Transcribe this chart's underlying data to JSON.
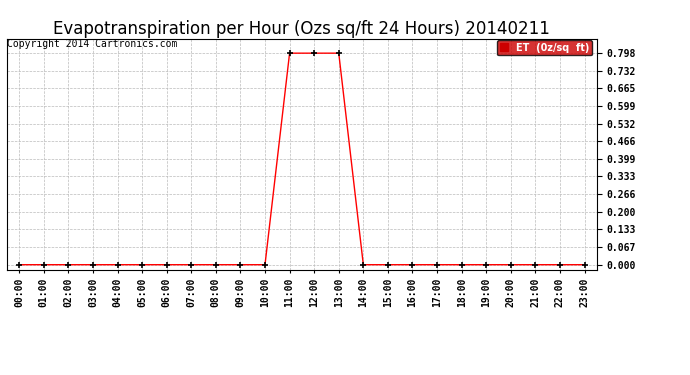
{
  "title": "Evapotranspiration per Hour (Ozs sq/ft 24 Hours) 20140211",
  "copyright": "Copyright 2014 Cartronics.com",
  "legend_label": "ET  (0z/sq  ft)",
  "x_hours": [
    0,
    1,
    2,
    3,
    4,
    5,
    6,
    7,
    8,
    9,
    10,
    11,
    12,
    13,
    14,
    15,
    16,
    17,
    18,
    19,
    20,
    21,
    22,
    23
  ],
  "y_values": [
    0,
    0,
    0,
    0,
    0,
    0,
    0,
    0,
    0,
    0,
    0,
    0.798,
    0.798,
    0.798,
    0,
    0,
    0,
    0,
    0,
    0,
    0,
    0,
    0,
    0
  ],
  "line_color": "#FF0000",
  "marker": "+",
  "marker_size": 4,
  "background_color": "#FFFFFF",
  "grid_color": "#BBBBBB",
  "yticks": [
    0.0,
    0.067,
    0.133,
    0.2,
    0.266,
    0.333,
    0.399,
    0.466,
    0.532,
    0.599,
    0.665,
    0.732,
    0.798
  ],
  "ylim": [
    -0.02,
    0.85
  ],
  "xlim": [
    -0.5,
    23.5
  ],
  "title_fontsize": 12,
  "copyright_fontsize": 7,
  "tick_fontsize": 7,
  "legend_bg": "#CC0000",
  "legend_fg": "#FFFFFF"
}
